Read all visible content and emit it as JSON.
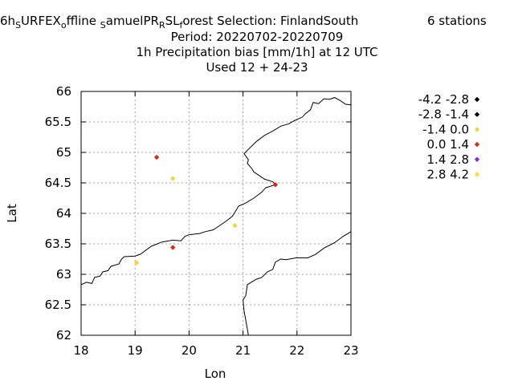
{
  "title": {
    "line1": {
      "p1": "6h",
      "s1": "S",
      "p2": "URFEX",
      "s2": "o",
      "p3": "ffline",
      "s3": "S",
      "p4": "amuelPR",
      "s4": "R",
      "p5": "SL",
      "s5": "f",
      "p6": "orest   Selection: FinlandSouth",
      "stations": "6 stations"
    },
    "line2": "Period: 20220702-20220709",
    "line3": "1h Precipitation bias [mm/1h] at  12 UTC",
    "line4": "Used  12 + 24-23"
  },
  "chart_data": {
    "type": "scatter",
    "xlabel": "Lon",
    "ylabel": "Lat",
    "xlim": [
      18,
      23
    ],
    "ylim": [
      62,
      66
    ],
    "xticks": [
      "18",
      "19",
      "20",
      "21",
      "22",
      "23"
    ],
    "yticks": [
      "62",
      "62.5",
      "63",
      "63.5",
      "64",
      "64.5",
      "65",
      "65.5",
      "66"
    ],
    "grid": true,
    "legend_position": "right",
    "legend": [
      {
        "label": "-4.2 -2.8",
        "color": "#000000"
      },
      {
        "label": "-2.8 -1.4",
        "color": "#000000"
      },
      {
        "label": "-1.4 0.0",
        "color": "#f2d33a"
      },
      {
        "label": "0.0 1.4",
        "color": "#d62b1f"
      },
      {
        "label": "1.4 2.8",
        "color": "#8a2be2"
      },
      {
        "label": "2.8 4.2",
        "color": "#f2e236"
      }
    ],
    "points": [
      {
        "lon": 19.4,
        "lat": 64.92,
        "class": 3
      },
      {
        "lon": 19.7,
        "lat": 64.57,
        "class": 2
      },
      {
        "lon": 21.6,
        "lat": 64.47,
        "class": 3
      },
      {
        "lon": 20.85,
        "lat": 63.8,
        "class": 2
      },
      {
        "lon": 19.7,
        "lat": 63.44,
        "class": 3
      },
      {
        "lon": 19.03,
        "lat": 63.19,
        "class": 2
      }
    ],
    "coastline": [
      [
        [
          18.0,
          62.83
        ],
        [
          18.1,
          62.87
        ],
        [
          18.2,
          62.85
        ],
        [
          18.25,
          62.95
        ],
        [
          18.35,
          62.97
        ],
        [
          18.4,
          63.04
        ],
        [
          18.5,
          63.06
        ],
        [
          18.55,
          63.13
        ],
        [
          18.7,
          63.17
        ],
        [
          18.75,
          63.25
        ],
        [
          18.8,
          63.29
        ],
        [
          19.0,
          63.3
        ],
        [
          19.1,
          63.33
        ],
        [
          19.3,
          63.46
        ],
        [
          19.5,
          63.53
        ],
        [
          19.7,
          63.56
        ],
        [
          19.85,
          63.55
        ],
        [
          19.92,
          63.62
        ],
        [
          20.0,
          63.65
        ],
        [
          20.2,
          63.67
        ],
        [
          20.3,
          63.7
        ],
        [
          20.45,
          63.73
        ],
        [
          20.55,
          63.79
        ],
        [
          20.7,
          63.88
        ],
        [
          20.8,
          63.95
        ],
        [
          20.85,
          64.02
        ],
        [
          20.92,
          64.12
        ],
        [
          21.05,
          64.17
        ],
        [
          21.2,
          64.25
        ],
        [
          21.35,
          64.35
        ],
        [
          21.42,
          64.42
        ],
        [
          21.6,
          64.47
        ],
        [
          21.55,
          64.52
        ],
        [
          21.4,
          64.56
        ],
        [
          21.3,
          64.62
        ],
        [
          21.2,
          64.68
        ],
        [
          21.15,
          64.75
        ],
        [
          21.08,
          64.82
        ],
        [
          21.1,
          64.88
        ],
        [
          21.02,
          64.98
        ],
        [
          21.1,
          65.05
        ],
        [
          21.25,
          65.18
        ],
        [
          21.4,
          65.28
        ],
        [
          21.55,
          65.35
        ],
        [
          21.7,
          65.43
        ],
        [
          21.85,
          65.47
        ],
        [
          21.95,
          65.52
        ],
        [
          22.1,
          65.58
        ],
        [
          22.15,
          65.63
        ],
        [
          22.25,
          65.7
        ],
        [
          22.3,
          65.82
        ],
        [
          22.4,
          65.8
        ],
        [
          22.5,
          65.88
        ],
        [
          22.6,
          65.87
        ],
        [
          22.7,
          65.9
        ],
        [
          22.8,
          65.85
        ],
        [
          22.9,
          65.79
        ],
        [
          23.0,
          65.78
        ]
      ],
      [
        [
          23.0,
          63.7
        ],
        [
          22.85,
          63.62
        ],
        [
          22.7,
          63.52
        ],
        [
          22.5,
          63.43
        ],
        [
          22.35,
          63.33
        ],
        [
          22.2,
          63.27
        ],
        [
          21.98,
          63.27
        ],
        [
          21.8,
          63.24
        ],
        [
          21.7,
          63.25
        ],
        [
          21.6,
          63.2
        ],
        [
          21.55,
          63.08
        ],
        [
          21.45,
          63.04
        ],
        [
          21.35,
          62.95
        ],
        [
          21.25,
          62.92
        ],
        [
          21.15,
          62.87
        ],
        [
          21.08,
          62.83
        ],
        [
          21.05,
          62.65
        ],
        [
          21.0,
          62.58
        ],
        [
          21.02,
          62.4
        ],
        [
          21.05,
          62.25
        ],
        [
          21.08,
          62.1
        ],
        [
          21.1,
          62.0
        ]
      ]
    ]
  }
}
